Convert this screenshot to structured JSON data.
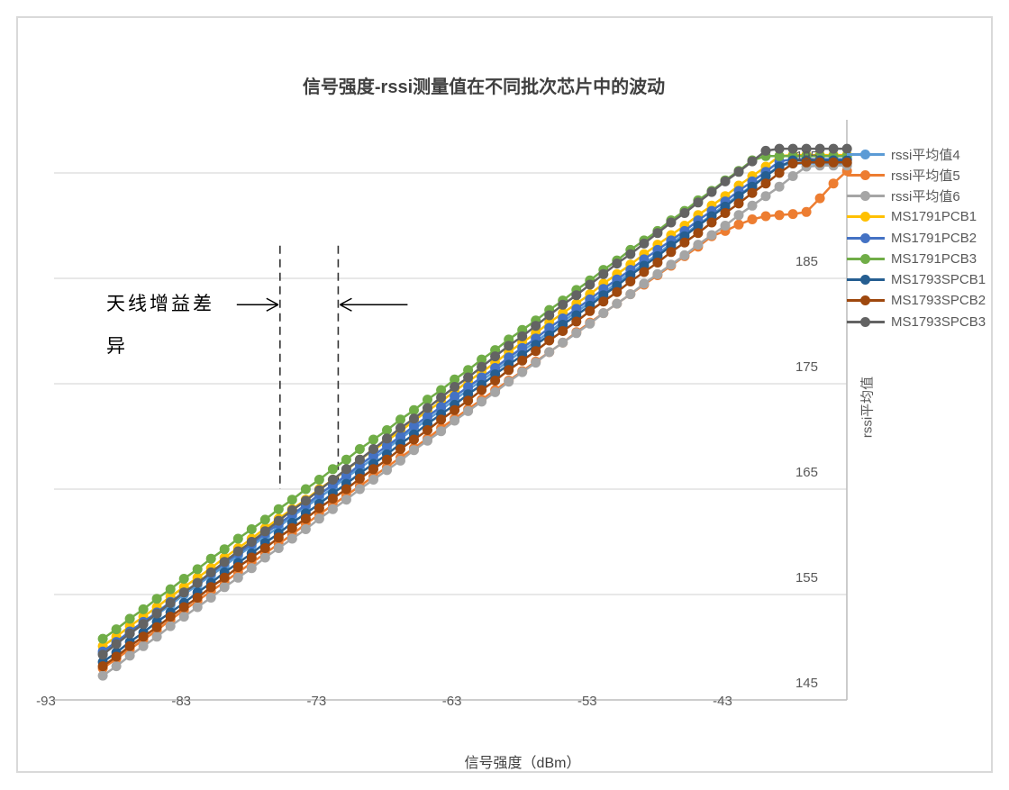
{
  "title": "信号强度-rssi测量值在不同批次芯片中的波动",
  "annotation": {
    "text": "天线增益差异",
    "line1_dbm": -76.9,
    "line2_dbm": -72.6,
    "top_value": 188.1,
    "bottom_value": 165.0,
    "arrow_value": 182.5
  },
  "colors": {
    "gridline": "#d9d9d9",
    "axis_line": "#bfbfbf",
    "tick_text": "#595959",
    "annotation_line": "#333333",
    "frame_border": "#d9d9d9"
  },
  "chart_data": {
    "type": "line",
    "title": "信号强度-rssi测量值在不同批次芯片中的波动",
    "xlabel": "信号强度（dBm）",
    "ylabel": "rssi平均值",
    "grid": "horizontal",
    "legend_position": "right",
    "xlim": [
      -93.6,
      -35
    ],
    "ylim": [
      145,
      200
    ],
    "x_ticks": [
      -93,
      -83,
      -73,
      -63,
      -53,
      -43
    ],
    "y_ticks": [
      145,
      155,
      165,
      175,
      185,
      195
    ],
    "x": [
      -90,
      -89,
      -88,
      -87,
      -86,
      -85,
      -84,
      -83,
      -82,
      -81,
      -80,
      -79,
      -78,
      -77,
      -76,
      -75,
      -74,
      -73,
      -72,
      -71,
      -70,
      -69,
      -68,
      -67,
      -66,
      -65,
      -64,
      -63,
      -62,
      -61,
      -60,
      -59,
      -58,
      -57,
      -56,
      -55,
      -54,
      -53,
      -52,
      -51,
      -50,
      -49,
      -48,
      -47,
      -46,
      -45,
      -44,
      -43,
      -42,
      -41,
      -40,
      -39,
      -38,
      -37,
      -36,
      -35
    ],
    "series": [
      {
        "name": "rssi平均值4",
        "color": "#5B9BD5",
        "values": [
          149.4,
          150.3,
          151.3,
          152.2,
          153.1,
          154.0,
          155.0,
          155.9,
          156.8,
          157.7,
          158.7,
          159.6,
          160.5,
          161.4,
          162.4,
          163.3,
          164.2,
          165.1,
          166.1,
          167.0,
          167.9,
          168.8,
          169.8,
          170.7,
          171.6,
          172.5,
          173.5,
          174.4,
          175.3,
          176.2,
          177.2,
          178.1,
          179.0,
          179.9,
          180.9,
          181.8,
          182.7,
          183.6,
          184.6,
          185.5,
          186.4,
          187.3,
          188.3,
          189.2,
          190.1,
          191.0,
          192.0,
          192.9,
          193.8,
          194.7,
          195.7,
          195.9,
          195.9,
          195.9,
          195.9,
          195.9
        ]
      },
      {
        "name": "rssi平均值5",
        "color": "#ED7D31",
        "values": [
          148.0,
          148.9,
          149.8,
          150.7,
          151.6,
          152.6,
          153.5,
          154.4,
          155.3,
          156.2,
          157.1,
          158.0,
          158.9,
          159.8,
          160.7,
          161.7,
          162.6,
          163.5,
          164.4,
          165.3,
          166.2,
          167.1,
          168.0,
          168.9,
          169.8,
          170.8,
          171.7,
          172.6,
          173.5,
          174.4,
          175.3,
          176.2,
          177.1,
          178.0,
          178.9,
          179.9,
          180.8,
          181.7,
          182.6,
          183.5,
          184.4,
          185.3,
          186.2,
          187.1,
          188.0,
          189.0,
          189.5,
          190.1,
          190.6,
          190.9,
          191.0,
          191.1,
          191.3,
          192.6,
          194.0,
          195.2
        ]
      },
      {
        "name": "rssi平均值6",
        "color": "#A5A5A5",
        "values": [
          147.3,
          148.2,
          149.2,
          150.1,
          151.0,
          152.0,
          152.9,
          153.8,
          154.7,
          155.7,
          156.6,
          157.5,
          158.5,
          159.4,
          160.3,
          161.2,
          162.2,
          163.1,
          164.0,
          165.0,
          165.9,
          166.8,
          167.7,
          168.7,
          169.6,
          170.5,
          171.5,
          172.4,
          173.3,
          174.2,
          175.2,
          176.1,
          177.0,
          178.0,
          178.9,
          179.8,
          180.7,
          181.7,
          182.6,
          183.5,
          184.5,
          185.4,
          186.3,
          187.2,
          188.2,
          189.1,
          190.0,
          191.0,
          191.9,
          192.8,
          193.7,
          194.7,
          195.6,
          195.7,
          195.7,
          195.7
        ]
      },
      {
        "name": "MS1791PCB1",
        "color": "#FFC000",
        "values": [
          150.1,
          151.0,
          152.0,
          152.9,
          153.8,
          154.8,
          155.7,
          156.6,
          157.5,
          158.5,
          159.4,
          160.3,
          161.3,
          162.2,
          163.1,
          164.0,
          165.0,
          165.9,
          166.8,
          167.8,
          168.7,
          169.6,
          170.5,
          171.5,
          172.4,
          173.3,
          174.3,
          175.2,
          176.1,
          177.0,
          178.0,
          178.9,
          179.8,
          180.8,
          181.7,
          182.6,
          183.5,
          184.5,
          185.4,
          186.3,
          187.3,
          188.2,
          189.1,
          190.0,
          191.0,
          191.9,
          192.8,
          193.8,
          194.7,
          195.6,
          196.6,
          196.7,
          196.7,
          196.7,
          196.7,
          196.7
        ]
      },
      {
        "name": "MS1791PCB2",
        "color": "#4472C4",
        "values": [
          149.6,
          150.5,
          151.5,
          152.4,
          153.3,
          154.3,
          155.2,
          156.1,
          157.0,
          158.0,
          158.9,
          159.8,
          160.8,
          161.7,
          162.6,
          163.5,
          164.5,
          165.4,
          166.3,
          167.3,
          168.2,
          169.1,
          170.0,
          171.0,
          171.9,
          172.8,
          173.8,
          174.7,
          175.6,
          176.5,
          177.5,
          178.4,
          179.3,
          180.3,
          181.2,
          182.1,
          183.0,
          184.0,
          184.9,
          185.8,
          186.8,
          187.7,
          188.6,
          189.5,
          190.5,
          191.4,
          192.3,
          193.3,
          194.2,
          195.1,
          196.1,
          196.3,
          196.3,
          196.3,
          196.3,
          196.3
        ]
      },
      {
        "name": "MS1791PCB3",
        "color": "#70AD47",
        "values": [
          150.8,
          151.7,
          152.7,
          153.6,
          154.6,
          155.5,
          156.5,
          157.4,
          158.4,
          159.3,
          160.3,
          161.2,
          162.1,
          163.1,
          164.0,
          165.0,
          165.9,
          166.9,
          167.8,
          168.8,
          169.7,
          170.6,
          171.6,
          172.5,
          173.5,
          174.4,
          175.4,
          176.3,
          177.3,
          178.2,
          179.2,
          180.1,
          181.0,
          182.0,
          182.9,
          183.9,
          184.8,
          185.8,
          186.7,
          187.7,
          188.6,
          189.5,
          190.5,
          191.4,
          192.4,
          193.3,
          194.3,
          195.2,
          196.2,
          196.6,
          196.6,
          196.6,
          196.6,
          196.6,
          196.6,
          196.6
        ]
      },
      {
        "name": "MS1793SPCB1",
        "color": "#255E91",
        "values": [
          148.6,
          149.5,
          150.5,
          151.4,
          152.4,
          153.3,
          154.2,
          155.2,
          156.1,
          157.1,
          158.0,
          158.9,
          159.9,
          160.8,
          161.8,
          162.7,
          163.6,
          164.6,
          165.5,
          166.5,
          167.4,
          168.3,
          169.3,
          170.2,
          171.2,
          172.1,
          173.0,
          174.0,
          174.9,
          175.9,
          176.8,
          177.7,
          178.7,
          179.6,
          180.6,
          181.5,
          182.4,
          183.4,
          184.3,
          185.3,
          186.2,
          187.1,
          188.1,
          189.0,
          190.0,
          190.9,
          191.8,
          192.8,
          193.7,
          194.7,
          195.6,
          196.2,
          196.2,
          196.2,
          196.2,
          196.2
        ]
      },
      {
        "name": "MS1793SPCB2",
        "color": "#9E480E",
        "values": [
          148.2,
          149.1,
          150.1,
          151.0,
          151.9,
          152.9,
          153.8,
          154.7,
          155.7,
          156.6,
          157.6,
          158.5,
          159.4,
          160.4,
          161.3,
          162.2,
          163.2,
          164.1,
          165.0,
          166.0,
          166.9,
          167.8,
          168.8,
          169.7,
          170.6,
          171.6,
          172.5,
          173.4,
          174.4,
          175.3,
          176.3,
          177.2,
          178.1,
          179.1,
          180.0,
          180.9,
          181.9,
          182.8,
          183.7,
          184.7,
          185.6,
          186.5,
          187.5,
          188.4,
          189.3,
          190.3,
          191.2,
          192.1,
          193.1,
          194.0,
          195.0,
          195.9,
          196.0,
          196.0,
          196.0,
          196.0
        ]
      },
      {
        "name": "MS1793SPCB3",
        "color": "#636363",
        "values": [
          149.3,
          150.3,
          151.3,
          152.2,
          153.2,
          154.2,
          155.2,
          156.1,
          157.1,
          158.1,
          159.1,
          160.0,
          161.0,
          162.0,
          163.0,
          163.9,
          164.9,
          165.9,
          166.9,
          167.8,
          168.8,
          169.8,
          170.8,
          171.7,
          172.7,
          173.7,
          174.7,
          175.6,
          176.6,
          177.6,
          178.6,
          179.5,
          180.5,
          181.5,
          182.5,
          183.4,
          184.4,
          185.4,
          186.4,
          187.3,
          188.3,
          189.3,
          190.3,
          191.2,
          192.2,
          193.2,
          194.2,
          195.1,
          196.1,
          197.1,
          197.3,
          197.3,
          197.3,
          197.3,
          197.3,
          197.3
        ]
      }
    ]
  }
}
